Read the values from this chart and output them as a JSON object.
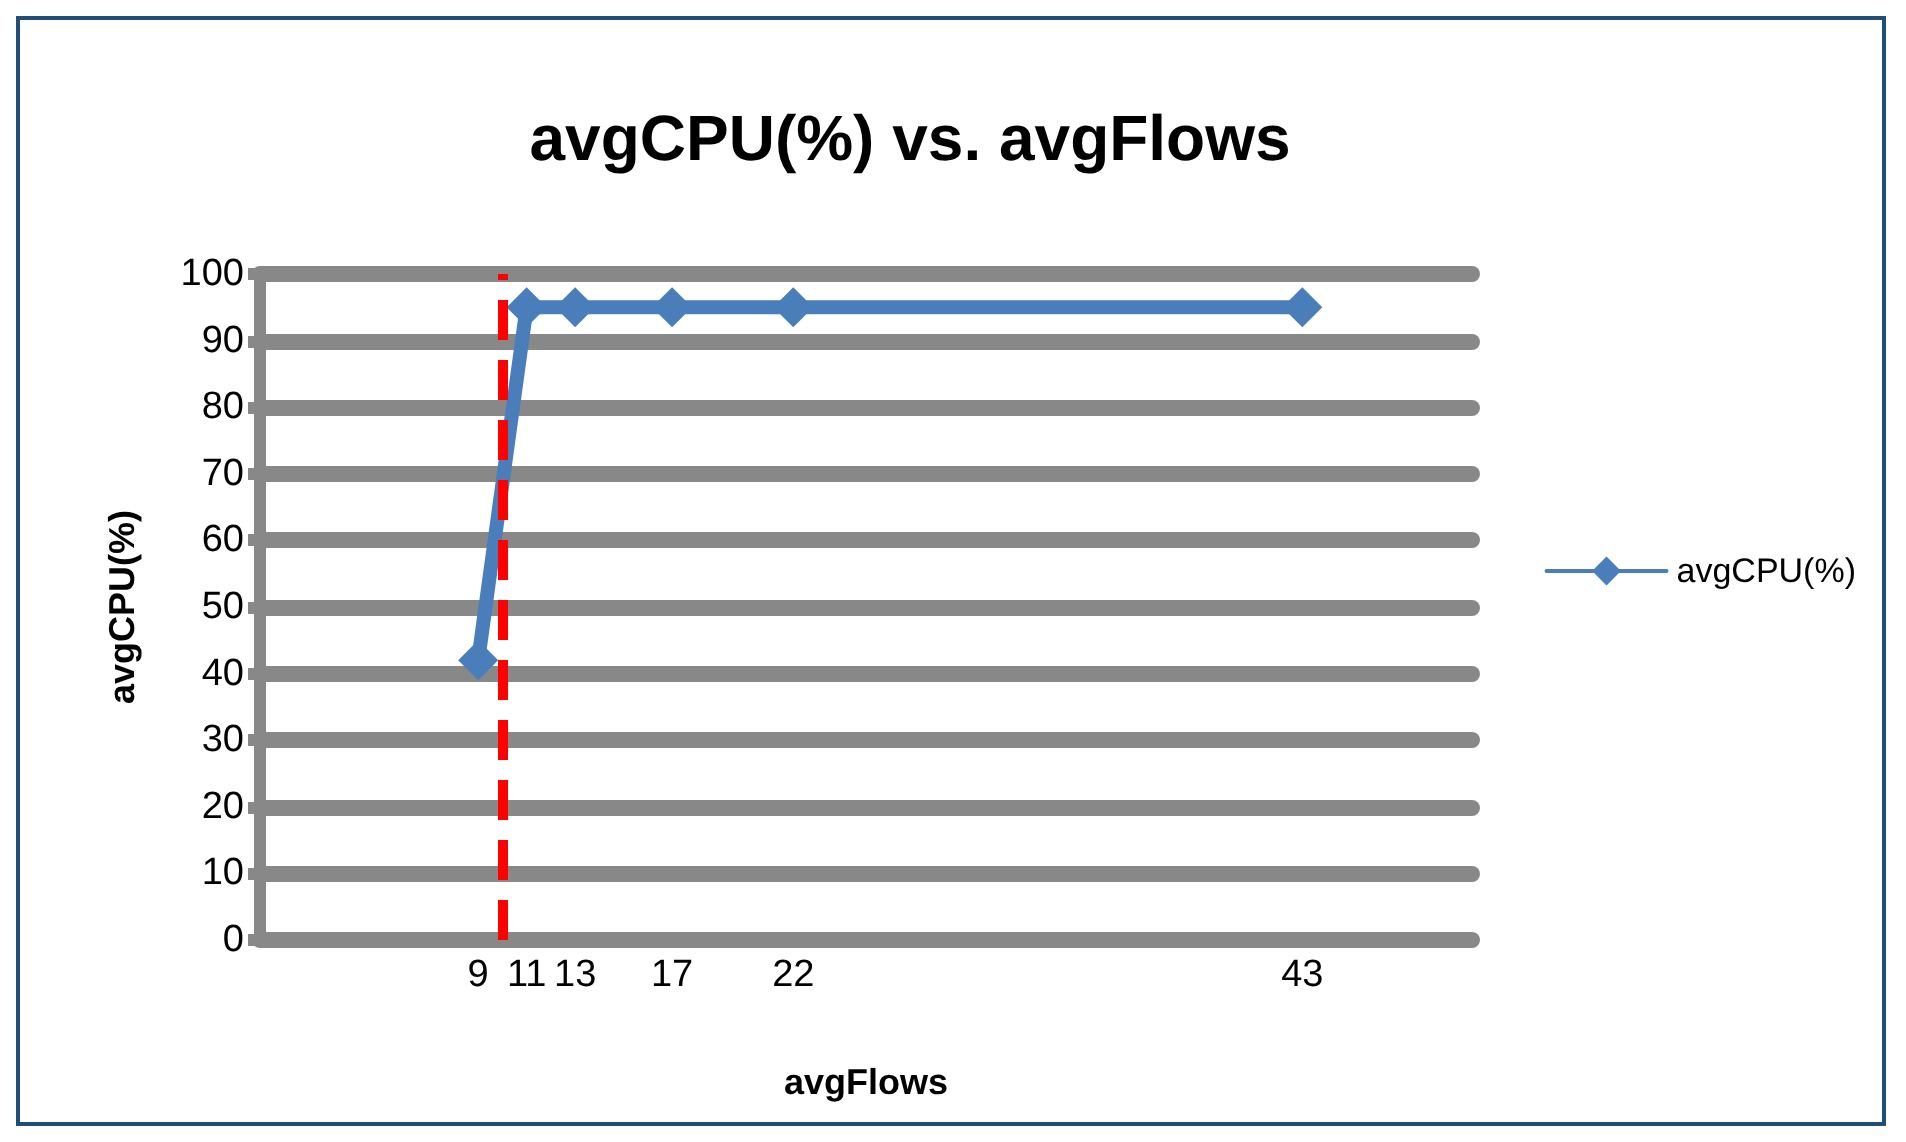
{
  "chart_data": {
    "type": "line",
    "title": "avgCPU(%) vs. avgFlows",
    "xlabel": "avgFlows",
    "ylabel": "avgCPU(%)",
    "x": [
      9,
      11,
      13,
      17,
      22,
      43
    ],
    "series": [
      {
        "name": "avgCPU(%)",
        "color": "#4a7ebb",
        "values": [
          42,
          95,
          95,
          95,
          95,
          95
        ]
      }
    ],
    "xlim": [
      0,
      50
    ],
    "xticks": [
      9,
      11,
      13,
      17,
      22,
      43
    ],
    "ylim": [
      0,
      100
    ],
    "yticks": [
      0,
      10,
      20,
      30,
      40,
      50,
      60,
      70,
      80,
      90,
      100
    ],
    "ref_lines": [
      {
        "axis": "x",
        "value": 10,
        "color": "#ff0000",
        "line_style": "dashed"
      }
    ],
    "grid": "y",
    "legend": "right",
    "marker": "diamond"
  }
}
